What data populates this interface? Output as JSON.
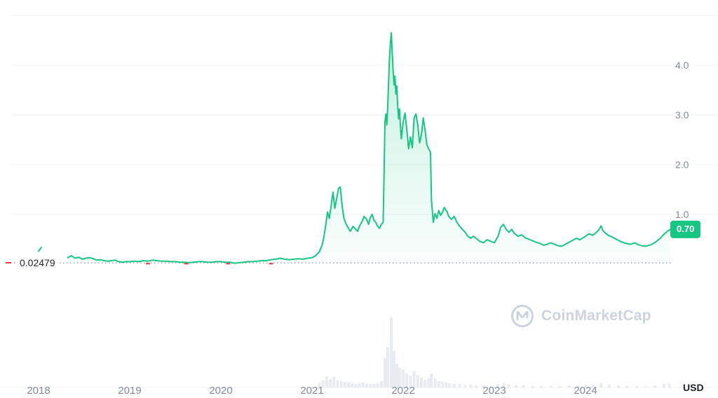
{
  "colors": {
    "line": "#16c784",
    "badge_bg": "#16c784",
    "badge_text": "#ffffff",
    "grid": "#eff2f5",
    "axis_text": "#808a9d",
    "ref_line": "#9aa4b8",
    "low_label_text": "#222531",
    "red_mark": "#ea3943",
    "volume_bar": "#e8ebf1",
    "watermark": "#ccd3de"
  },
  "axis": {
    "unit_label": "USD",
    "y_ticks": [
      {
        "label": "1.0",
        "value": 1.0
      },
      {
        "label": "2.0",
        "value": 2.0
      },
      {
        "label": "3.0",
        "value": 3.0
      },
      {
        "label": "4.0",
        "value": 4.0
      }
    ],
    "x_ticks": [
      {
        "label": "2018",
        "value": 2018
      },
      {
        "label": "2019",
        "value": 2019
      },
      {
        "label": "2020",
        "value": 2020
      },
      {
        "label": "2021",
        "value": 2021
      },
      {
        "label": "2022",
        "value": 2022
      },
      {
        "label": "2023",
        "value": 2023
      },
      {
        "label": "2024",
        "value": 2024
      }
    ]
  },
  "reference": {
    "label": "0.02479",
    "value": 0.02479
  },
  "current_price": {
    "label": "0.70",
    "value": 0.7
  },
  "watermark": {
    "text": "CoinMarketCap"
  },
  "chart_data": {
    "type": "area",
    "title": "",
    "xlabel": "",
    "ylabel": "USD",
    "x_unit": "year",
    "xlim": [
      2017.95,
      2024.98
    ],
    "ylim": [
      0,
      5
    ],
    "grid": "horizontal",
    "legend": "none",
    "y_gridlines": [
      1,
      2,
      3,
      4,
      5
    ],
    "pre_series": [
      [
        2018.0,
        0.26
      ],
      [
        2018.03,
        0.34
      ]
    ],
    "series": [
      {
        "name": "Price (USD)",
        "points": [
          [
            2018.32,
            0.13
          ],
          [
            2018.36,
            0.17
          ],
          [
            2018.4,
            0.12
          ],
          [
            2018.44,
            0.14
          ],
          [
            2018.48,
            0.1
          ],
          [
            2018.52,
            0.12
          ],
          [
            2018.56,
            0.13
          ],
          [
            2018.6,
            0.11
          ],
          [
            2018.64,
            0.08
          ],
          [
            2018.68,
            0.09
          ],
          [
            2018.72,
            0.07
          ],
          [
            2018.76,
            0.06
          ],
          [
            2018.8,
            0.07
          ],
          [
            2018.84,
            0.08
          ],
          [
            2018.88,
            0.05
          ],
          [
            2018.92,
            0.04
          ],
          [
            2018.96,
            0.05
          ],
          [
            2019.0,
            0.05
          ],
          [
            2019.05,
            0.06
          ],
          [
            2019.1,
            0.05
          ],
          [
            2019.15,
            0.07
          ],
          [
            2019.2,
            0.06
          ],
          [
            2019.25,
            0.08
          ],
          [
            2019.3,
            0.07
          ],
          [
            2019.35,
            0.06
          ],
          [
            2019.4,
            0.06
          ],
          [
            2019.45,
            0.05
          ],
          [
            2019.5,
            0.05
          ],
          [
            2019.55,
            0.04
          ],
          [
            2019.6,
            0.04
          ],
          [
            2019.65,
            0.03
          ],
          [
            2019.7,
            0.04
          ],
          [
            2019.75,
            0.05
          ],
          [
            2019.8,
            0.05
          ],
          [
            2019.85,
            0.04
          ],
          [
            2019.9,
            0.04
          ],
          [
            2019.95,
            0.05
          ],
          [
            2020.0,
            0.05
          ],
          [
            2020.05,
            0.04
          ],
          [
            2020.1,
            0.04
          ],
          [
            2020.15,
            0.02
          ],
          [
            2020.2,
            0.03
          ],
          [
            2020.25,
            0.04
          ],
          [
            2020.3,
            0.05
          ],
          [
            2020.35,
            0.05
          ],
          [
            2020.4,
            0.06
          ],
          [
            2020.45,
            0.07
          ],
          [
            2020.5,
            0.07
          ],
          [
            2020.55,
            0.09
          ],
          [
            2020.6,
            0.1
          ],
          [
            2020.65,
            0.12
          ],
          [
            2020.7,
            0.1
          ],
          [
            2020.75,
            0.09
          ],
          [
            2020.8,
            0.1
          ],
          [
            2020.85,
            0.11
          ],
          [
            2020.9,
            0.1
          ],
          [
            2020.95,
            0.12
          ],
          [
            2021.0,
            0.13
          ],
          [
            2021.04,
            0.17
          ],
          [
            2021.08,
            0.25
          ],
          [
            2021.11,
            0.38
          ],
          [
            2021.13,
            0.55
          ],
          [
            2021.15,
            0.78
          ],
          [
            2021.17,
            1.05
          ],
          [
            2021.19,
            0.92
          ],
          [
            2021.21,
            1.18
          ],
          [
            2021.23,
            1.45
          ],
          [
            2021.25,
            1.12
          ],
          [
            2021.27,
            1.32
          ],
          [
            2021.29,
            1.52
          ],
          [
            2021.31,
            1.55
          ],
          [
            2021.33,
            1.18
          ],
          [
            2021.35,
            0.92
          ],
          [
            2021.37,
            0.82
          ],
          [
            2021.4,
            0.72
          ],
          [
            2021.42,
            0.66
          ],
          [
            2021.45,
            0.76
          ],
          [
            2021.48,
            0.7
          ],
          [
            2021.5,
            0.66
          ],
          [
            2021.52,
            0.76
          ],
          [
            2021.55,
            0.86
          ],
          [
            2021.57,
            0.96
          ],
          [
            2021.6,
            0.9
          ],
          [
            2021.62,
            0.8
          ],
          [
            2021.64,
            0.94
          ],
          [
            2021.66,
            1.0
          ],
          [
            2021.68,
            0.88
          ],
          [
            2021.7,
            0.84
          ],
          [
            2021.72,
            0.76
          ],
          [
            2021.74,
            0.72
          ],
          [
            2021.76,
            0.8
          ],
          [
            2021.78,
            0.84
          ],
          [
            2021.79,
            1.8
          ],
          [
            2021.8,
            2.85
          ],
          [
            2021.81,
            3.02
          ],
          [
            2021.82,
            2.8
          ],
          [
            2021.83,
            3.15
          ],
          [
            2021.84,
            3.65
          ],
          [
            2021.85,
            4.15
          ],
          [
            2021.86,
            4.45
          ],
          [
            2021.87,
            4.65
          ],
          [
            2021.88,
            4.25
          ],
          [
            2021.89,
            3.88
          ],
          [
            2021.9,
            3.6
          ],
          [
            2021.91,
            3.78
          ],
          [
            2021.92,
            3.42
          ],
          [
            2021.93,
            3.58
          ],
          [
            2021.94,
            3.18
          ],
          [
            2021.95,
            2.92
          ],
          [
            2021.96,
            3.12
          ],
          [
            2021.97,
            2.76
          ],
          [
            2021.98,
            2.52
          ],
          [
            2022.0,
            2.86
          ],
          [
            2022.02,
            3.04
          ],
          [
            2022.04,
            2.7
          ],
          [
            2022.06,
            2.32
          ],
          [
            2022.08,
            2.56
          ],
          [
            2022.1,
            2.34
          ],
          [
            2022.12,
            2.94
          ],
          [
            2022.14,
            3.02
          ],
          [
            2022.16,
            2.8
          ],
          [
            2022.18,
            2.44
          ],
          [
            2022.2,
            2.6
          ],
          [
            2022.22,
            2.94
          ],
          [
            2022.24,
            2.7
          ],
          [
            2022.26,
            2.4
          ],
          [
            2022.28,
            2.32
          ],
          [
            2022.3,
            2.25
          ],
          [
            2022.31,
            1.3
          ],
          [
            2022.33,
            0.84
          ],
          [
            2022.35,
            1.02
          ],
          [
            2022.37,
            0.92
          ],
          [
            2022.39,
            1.08
          ],
          [
            2022.41,
            0.98
          ],
          [
            2022.43,
            1.04
          ],
          [
            2022.45,
            1.14
          ],
          [
            2022.48,
            1.06
          ],
          [
            2022.5,
            0.96
          ],
          [
            2022.53,
            0.9
          ],
          [
            2022.56,
            0.96
          ],
          [
            2022.59,
            0.84
          ],
          [
            2022.62,
            0.76
          ],
          [
            2022.65,
            0.7
          ],
          [
            2022.68,
            0.64
          ],
          [
            2022.71,
            0.56
          ],
          [
            2022.74,
            0.52
          ],
          [
            2022.77,
            0.56
          ],
          [
            2022.8,
            0.52
          ],
          [
            2022.84,
            0.46
          ],
          [
            2022.88,
            0.43
          ],
          [
            2022.92,
            0.49
          ],
          [
            2022.96,
            0.46
          ],
          [
            2023.0,
            0.43
          ],
          [
            2023.04,
            0.56
          ],
          [
            2023.07,
            0.74
          ],
          [
            2023.1,
            0.8
          ],
          [
            2023.13,
            0.7
          ],
          [
            2023.16,
            0.64
          ],
          [
            2023.19,
            0.7
          ],
          [
            2023.22,
            0.62
          ],
          [
            2023.26,
            0.56
          ],
          [
            2023.3,
            0.59
          ],
          [
            2023.34,
            0.53
          ],
          [
            2023.38,
            0.5
          ],
          [
            2023.42,
            0.47
          ],
          [
            2023.46,
            0.44
          ],
          [
            2023.5,
            0.42
          ],
          [
            2023.54,
            0.38
          ],
          [
            2023.58,
            0.4
          ],
          [
            2023.62,
            0.43
          ],
          [
            2023.66,
            0.4
          ],
          [
            2023.7,
            0.37
          ],
          [
            2023.74,
            0.36
          ],
          [
            2023.78,
            0.4
          ],
          [
            2023.82,
            0.44
          ],
          [
            2023.86,
            0.48
          ],
          [
            2023.9,
            0.52
          ],
          [
            2023.94,
            0.49
          ],
          [
            2024.0,
            0.56
          ],
          [
            2024.04,
            0.61
          ],
          [
            2024.08,
            0.58
          ],
          [
            2024.12,
            0.64
          ],
          [
            2024.15,
            0.7
          ],
          [
            2024.17,
            0.77
          ],
          [
            2024.19,
            0.68
          ],
          [
            2024.22,
            0.62
          ],
          [
            2024.26,
            0.57
          ],
          [
            2024.3,
            0.54
          ],
          [
            2024.34,
            0.5
          ],
          [
            2024.38,
            0.46
          ],
          [
            2024.42,
            0.43
          ],
          [
            2024.46,
            0.41
          ],
          [
            2024.5,
            0.4
          ],
          [
            2024.54,
            0.43
          ],
          [
            2024.58,
            0.39
          ],
          [
            2024.62,
            0.37
          ],
          [
            2024.66,
            0.36
          ],
          [
            2024.7,
            0.38
          ],
          [
            2024.74,
            0.41
          ],
          [
            2024.78,
            0.46
          ],
          [
            2024.82,
            0.52
          ],
          [
            2024.86,
            0.6
          ],
          [
            2024.9,
            0.66
          ],
          [
            2024.93,
            0.7
          ]
        ]
      }
    ],
    "volume": [
      [
        2021.08,
        0.06
      ],
      [
        2021.12,
        0.1
      ],
      [
        2021.16,
        0.16
      ],
      [
        2021.2,
        0.12
      ],
      [
        2021.24,
        0.15
      ],
      [
        2021.28,
        0.1
      ],
      [
        2021.32,
        0.09
      ],
      [
        2021.36,
        0.08
      ],
      [
        2021.4,
        0.07
      ],
      [
        2021.44,
        0.06
      ],
      [
        2021.48,
        0.05
      ],
      [
        2021.52,
        0.06
      ],
      [
        2021.56,
        0.07
      ],
      [
        2021.6,
        0.06
      ],
      [
        2021.64,
        0.05
      ],
      [
        2021.68,
        0.05
      ],
      [
        2021.72,
        0.06
      ],
      [
        2021.76,
        0.09
      ],
      [
        2021.8,
        0.42
      ],
      [
        2021.83,
        0.58
      ],
      [
        2021.87,
        1.0
      ],
      [
        2021.9,
        0.52
      ],
      [
        2021.93,
        0.34
      ],
      [
        2021.96,
        0.28
      ],
      [
        2022.0,
        0.26
      ],
      [
        2022.04,
        0.2
      ],
      [
        2022.08,
        0.17
      ],
      [
        2022.12,
        0.23
      ],
      [
        2022.16,
        0.18
      ],
      [
        2022.2,
        0.14
      ],
      [
        2022.24,
        0.11
      ],
      [
        2022.28,
        0.13
      ],
      [
        2022.31,
        0.2
      ],
      [
        2022.35,
        0.13
      ],
      [
        2022.39,
        0.09
      ],
      [
        2022.43,
        0.08
      ],
      [
        2022.47,
        0.07
      ],
      [
        2022.51,
        0.06
      ],
      [
        2022.56,
        0.05
      ],
      [
        2022.62,
        0.05
      ],
      [
        2022.68,
        0.04
      ],
      [
        2022.74,
        0.04
      ],
      [
        2022.8,
        0.03
      ],
      [
        2022.88,
        0.03
      ],
      [
        2022.96,
        0.03
      ],
      [
        2023.04,
        0.05
      ],
      [
        2023.1,
        0.06
      ],
      [
        2023.16,
        0.04
      ],
      [
        2023.24,
        0.03
      ],
      [
        2023.32,
        0.03
      ],
      [
        2023.42,
        0.02
      ],
      [
        2023.52,
        0.02
      ],
      [
        2023.62,
        0.02
      ],
      [
        2023.72,
        0.02
      ],
      [
        2023.82,
        0.03
      ],
      [
        2023.92,
        0.03
      ],
      [
        2024.0,
        0.04
      ],
      [
        2024.08,
        0.04
      ],
      [
        2024.17,
        0.06
      ],
      [
        2024.26,
        0.04
      ],
      [
        2024.36,
        0.03
      ],
      [
        2024.46,
        0.02
      ],
      [
        2024.56,
        0.02
      ],
      [
        2024.66,
        0.02
      ],
      [
        2024.76,
        0.03
      ],
      [
        2024.86,
        0.05
      ],
      [
        2024.92,
        0.06
      ]
    ],
    "below_ref_marks": [
      2019.2,
      2019.62,
      2020.08,
      2020.55
    ]
  }
}
